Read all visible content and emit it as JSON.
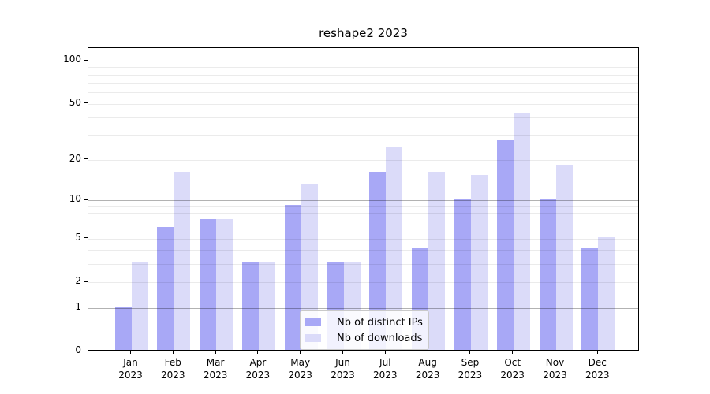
{
  "chart_data": {
    "type": "bar",
    "title": "reshape2 2023",
    "categories": [
      "Jan",
      "Feb",
      "Mar",
      "Apr",
      "May",
      "Jun",
      "Jul",
      "Aug",
      "Sep",
      "Oct",
      "Nov",
      "Dec"
    ],
    "year": "2023",
    "series": [
      {
        "name": "Nb of distinct IPs",
        "color": "#a8a8f6",
        "values": [
          1,
          6,
          7,
          3,
          9,
          3,
          16,
          4,
          10,
          27,
          10,
          4
        ]
      },
      {
        "name": "Nb of downloads",
        "color": "#dbdbf9",
        "values": [
          3,
          16,
          7,
          3,
          13,
          3,
          24,
          16,
          15,
          42,
          18,
          5
        ]
      }
    ],
    "yaxis": {
      "scale": "log1p",
      "tick_labels": [
        0,
        1,
        2,
        5,
        10,
        20,
        50,
        100
      ],
      "major_gridlines": [
        1,
        10,
        100
      ],
      "minor_gridlines": [
        2,
        3,
        4,
        5,
        6,
        7,
        8,
        9,
        20,
        30,
        40,
        50,
        60,
        70,
        80,
        90
      ],
      "range": [
        0,
        122
      ]
    },
    "xlabel": "",
    "ylabel": "",
    "grid": true,
    "legend_position": "lower center",
    "background": "#ffffff",
    "spine_color": "#000000"
  }
}
